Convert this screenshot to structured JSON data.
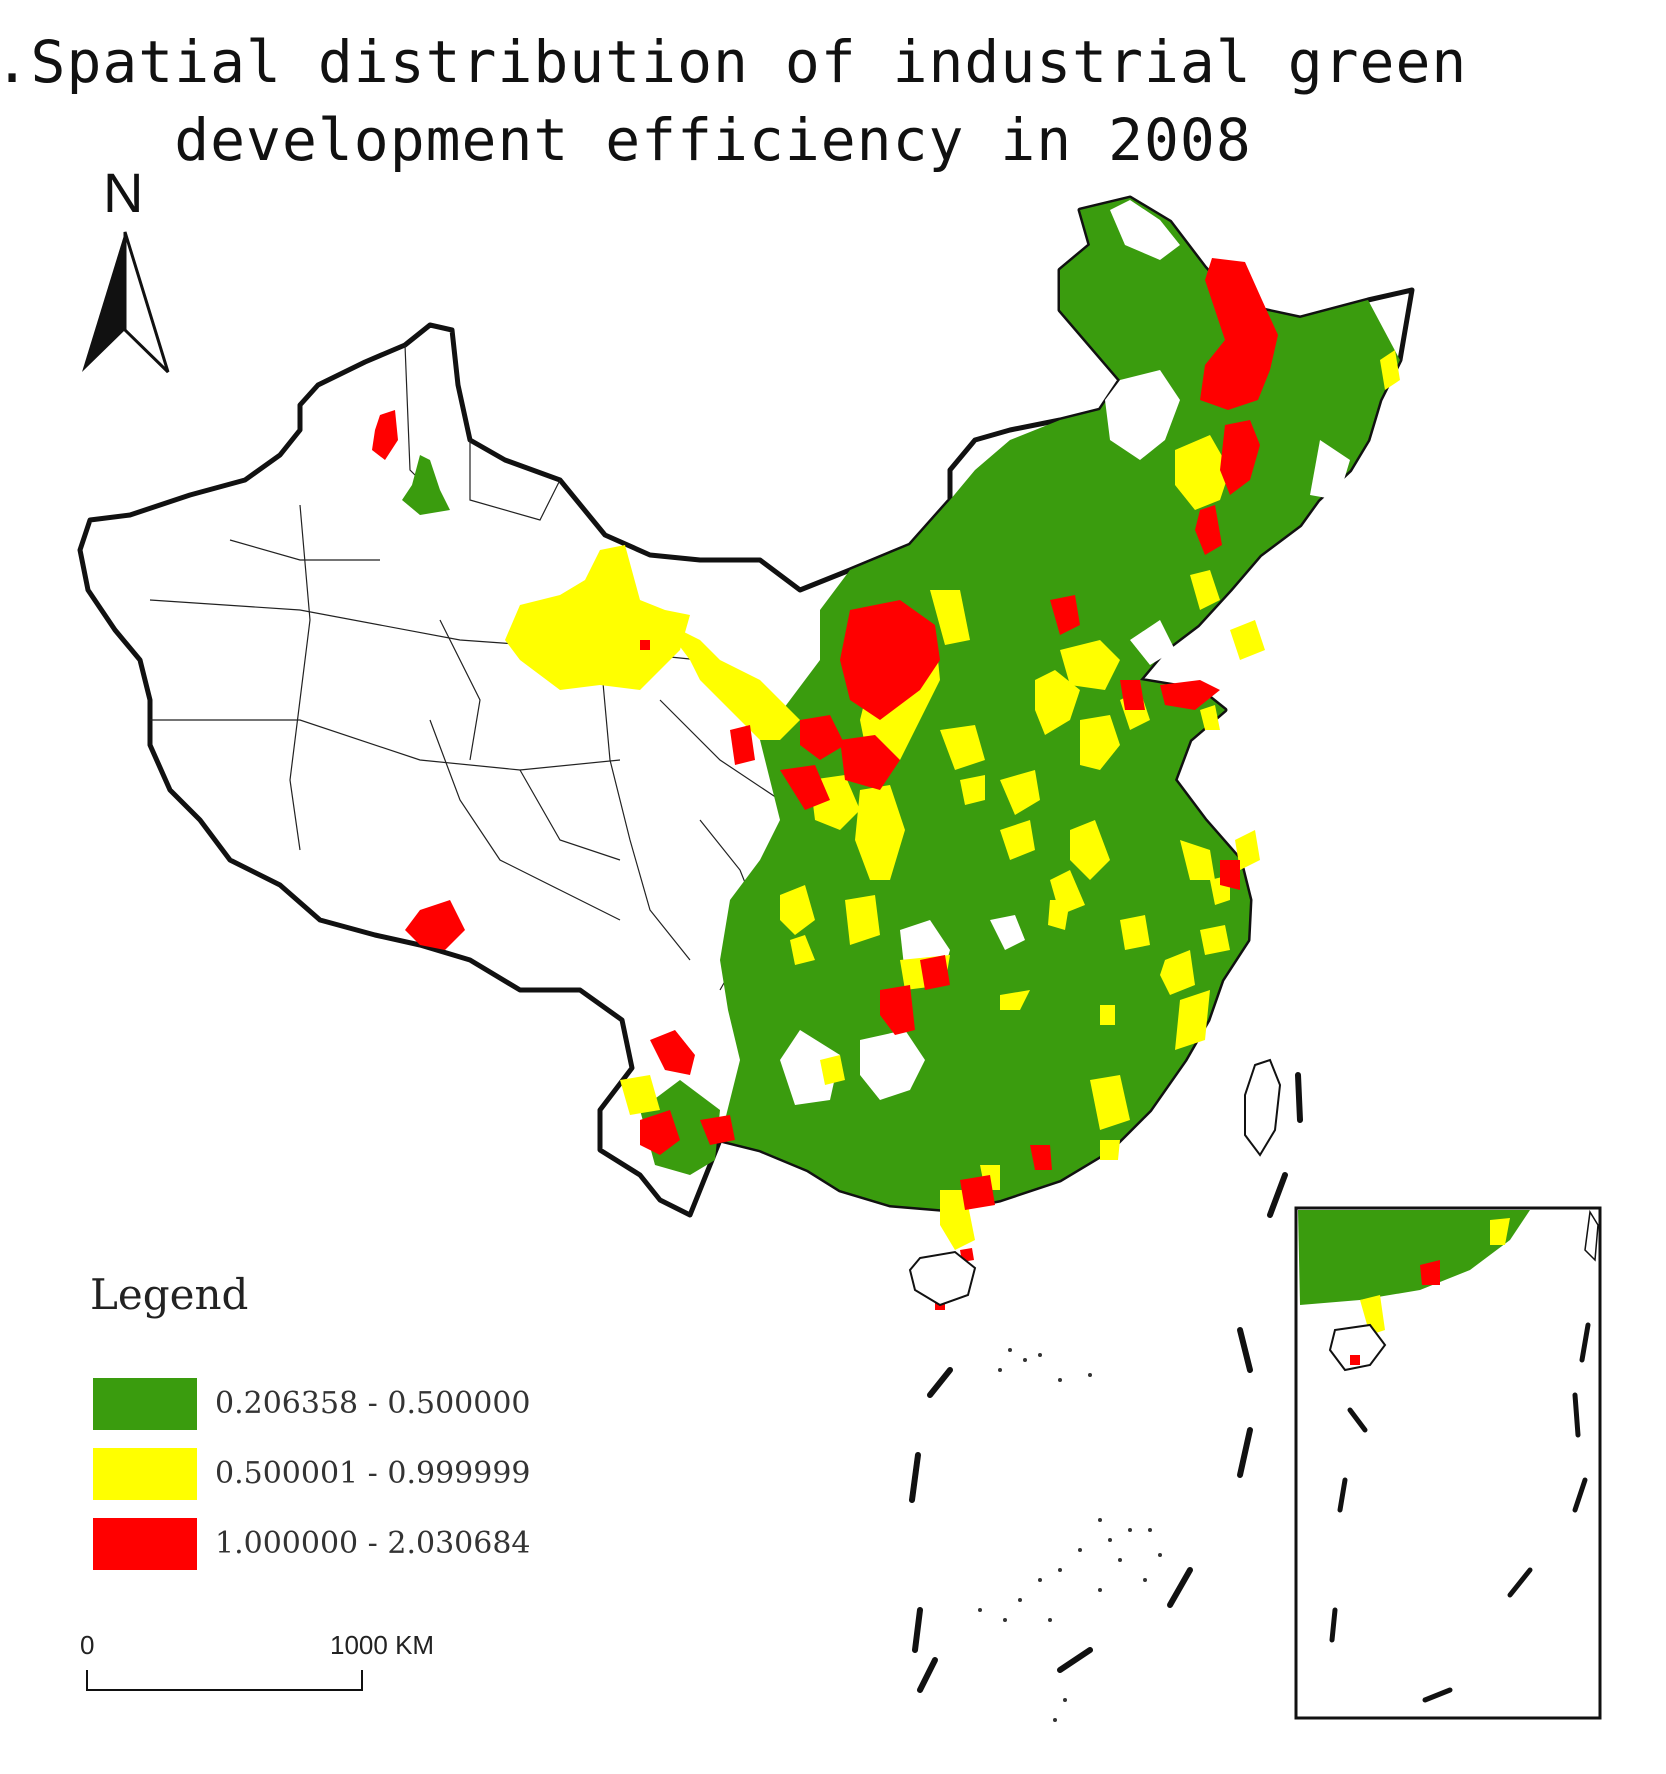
{
  "title": {
    "line1": "a.Spatial distribution of industrial green",
    "line2": "development efficiency in 2008"
  },
  "north_arrow": {
    "label": "N"
  },
  "legend": {
    "title": "Legend",
    "classes": [
      {
        "label": "0.206358 - 0.500000",
        "color": "#3a9c0e"
      },
      {
        "label": "0.500001 - 0.999999",
        "color": "#ffff00"
      },
      {
        "label": "1.000000 - 2.030684",
        "color": "#ff0000"
      }
    ]
  },
  "scale_bar": {
    "start_label": "0",
    "end_label": "1000 KM"
  },
  "colors": {
    "no_data": "#ffffff",
    "border": "#111111"
  }
}
